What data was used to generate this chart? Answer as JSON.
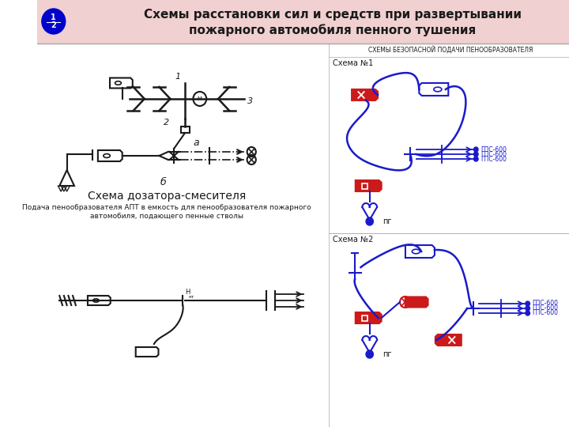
{
  "title_line1": "Схемы расстановки сил и средств при развертывании",
  "title_line2": "пожарного автомобиля пенного тушения",
  "header_bg": "#f0d0d0",
  "badge_color": "#0000cc",
  "section_left_title": "Схема дозатора-смесителя",
  "section_left_subtitle": "Подача пенообразователя АПТ в емкость для пенообразователя пожарного\nавтомобиля, подающего пенные стволы",
  "section_right_title": "СХЕМЫ БЕЗОПАСНОЙ ПОДАЧИ ПЕНООБРАЗОВАТЕЛЯ",
  "scheme1_label": "Схема №1",
  "scheme2_label": "Схема №2",
  "gps600_label": "ГПС-600",
  "pg_label": "пг",
  "black": "#1a1a1a",
  "blue": "#1a1acc",
  "red": "#cc1a1a",
  "white": "#ffffff",
  "bg": "#ffffff"
}
